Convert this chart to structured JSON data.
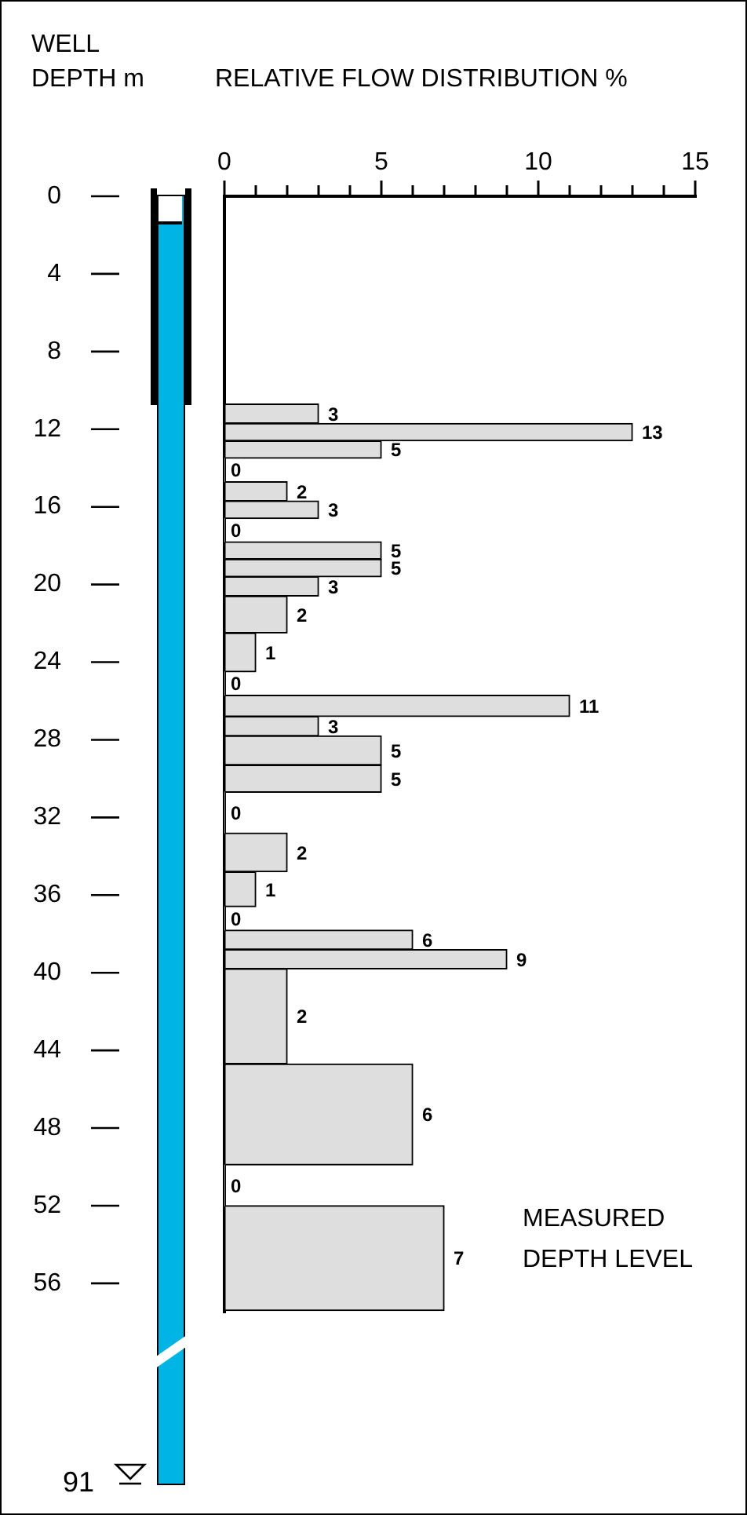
{
  "chart_data": {
    "type": "histogram",
    "orientation": "horizontal",
    "xlabel": "RELATIVE FLOW DISTRIBUTION  %",
    "ylabel": "WELL DEPTH  m",
    "bins": [
      10.7,
      11.7,
      12.6,
      13.5,
      14.7,
      15.7,
      16.6,
      17.8,
      18.7,
      19.6,
      20.6,
      22.5,
      24.5,
      25.7,
      26.8,
      27.8,
      29.3,
      30.7,
      32.8,
      34.8,
      36.6,
      37.8,
      38.8,
      39.8,
      44.7,
      49.9,
      52.0,
      57.4
    ],
    "values": [
      3,
      13,
      5,
      0,
      2,
      3,
      0,
      5,
      5,
      3,
      2,
      1,
      0,
      11,
      3,
      5,
      5,
      0,
      2,
      1,
      0,
      6,
      9,
      2,
      6,
      0,
      7
    ],
    "color": "#dedede",
    "data_labels": true,
    "xlim": [
      0,
      15
    ],
    "xticks": [
      0,
      {
        "value": 1,
        "label": null
      },
      {
        "value": 2,
        "label": null
      },
      {
        "value": 3,
        "label": null
      },
      {
        "value": 4,
        "label": null
      },
      5,
      {
        "value": 6,
        "label": null
      },
      {
        "value": 7,
        "label": null
      },
      {
        "value": 8,
        "label": null
      },
      {
        "value": 9,
        "label": null
      },
      10,
      {
        "value": 11,
        "label": null
      },
      {
        "value": 12,
        "label": null
      },
      {
        "value": 13,
        "label": null
      },
      {
        "value": 14,
        "label": null
      },
      15
    ],
    "ylim": [
      57.5,
      0
    ],
    "yticks": [
      0,
      4,
      8,
      12,
      16,
      20,
      24,
      28,
      32,
      36,
      40,
      44,
      48,
      52,
      56
    ],
    "grid": false,
    "legend": false,
    "annotations": [
      "MEASURED DEPTH LEVEL",
      "91"
    ]
  }
}
